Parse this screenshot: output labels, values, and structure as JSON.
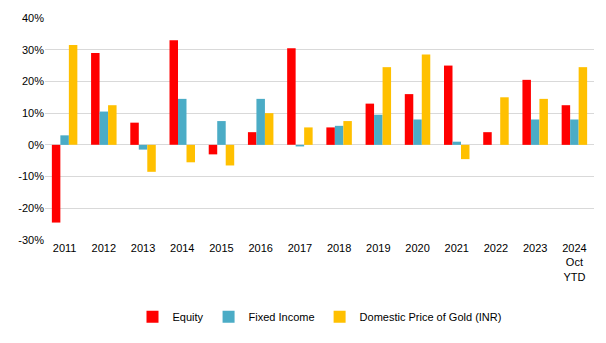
{
  "chart_data": {
    "type": "bar",
    "categories": [
      "2011",
      "2012",
      "2013",
      "2014",
      "2015",
      "2016",
      "2017",
      "2018",
      "2019",
      "2020",
      "2021",
      "2022",
      "2023",
      "2024\nOct\nYTD"
    ],
    "series": [
      {
        "name": "Equity",
        "color": "#ff0000",
        "values": [
          -24.5,
          29,
          7,
          33,
          -3,
          4,
          30.5,
          5.5,
          13,
          16,
          25,
          4,
          20.5,
          12.5
        ]
      },
      {
        "name": "Fixed Income",
        "color": "#4bacc6",
        "values": [
          3,
          10.5,
          -1.5,
          14.5,
          7.5,
          14.5,
          -0.5,
          6,
          9.5,
          8,
          1,
          0,
          8,
          8
        ]
      },
      {
        "name": "Domestic Price of Gold (INR)",
        "color": "#ffc000",
        "values": [
          31.5,
          12.5,
          -8.5,
          -5.5,
          -6.5,
          10,
          5.5,
          7.5,
          24.5,
          28.5,
          -4.5,
          15,
          14.5,
          24.5
        ]
      }
    ],
    "ylim": [
      -30,
      40
    ],
    "yticks": [
      {
        "value": -30,
        "label": "-30%"
      },
      {
        "value": -20,
        "label": "-20%"
      },
      {
        "value": -10,
        "label": "-10%"
      },
      {
        "value": 0,
        "label": "0%"
      },
      {
        "value": 10,
        "label": "10%"
      },
      {
        "value": 20,
        "label": "20%"
      },
      {
        "value": 30,
        "label": "30%"
      },
      {
        "value": 40,
        "label": "40%"
      }
    ],
    "grid": true,
    "legend": "bottom"
  }
}
